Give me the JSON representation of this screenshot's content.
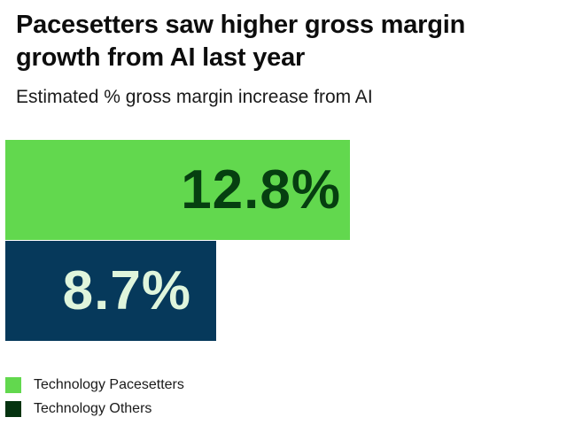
{
  "chart_data": {
    "type": "bar",
    "orientation": "horizontal",
    "title": "Pacesetters saw higher gross margin growth from AI last year",
    "subtitle": "Estimated % gross margin increase from AI",
    "categories": [
      "Technology Pacesetters",
      "Technology Others"
    ],
    "values": [
      12.8,
      8.7
    ],
    "data_labels": [
      "12.8%",
      "8.7%"
    ],
    "xlabel": "",
    "ylabel": "",
    "grid": false,
    "legend_position": "bottom-left",
    "series": [
      {
        "name": "Technology Pacesetters",
        "value": 12.8,
        "label": "12.8%",
        "bar_color": "#62d84e",
        "label_color": "#063f10",
        "legend_color": "#62d84e"
      },
      {
        "name": "Technology Others",
        "value": 8.7,
        "label": "8.7%",
        "bar_color": "#06395b",
        "label_color": "#dff5dc",
        "legend_color": "#053310"
      }
    ]
  },
  "header": {
    "title": "Pacesetters saw higher gross margin growth from AI last year",
    "subtitle": "Estimated % gross margin increase from AI"
  },
  "legend": [
    {
      "label": "Technology Pacesetters"
    },
    {
      "label": "Technology Others"
    }
  ]
}
